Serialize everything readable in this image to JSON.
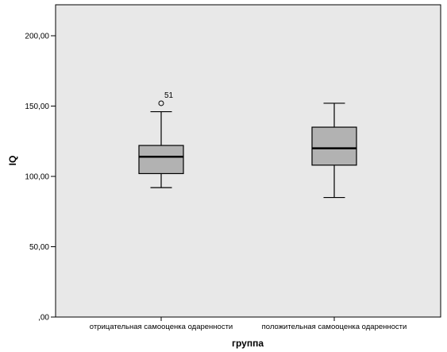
{
  "chart_data": {
    "type": "boxplot",
    "xlabel": "группа",
    "ylabel": "IQ",
    "ylim": [
      0,
      220
    ],
    "yticks": [
      0,
      50,
      100,
      150,
      200
    ],
    "ytick_labels": [
      ",00",
      "50,00",
      "100,00",
      "150,00",
      "200,00"
    ],
    "grid": false,
    "categories": [
      "отрицательная самооценка одаренности",
      "положительная самооценка одаренности"
    ],
    "boxes": [
      {
        "category": "отрицательная самооценка одаренности",
        "whisker_low": 92,
        "q1": 102,
        "median": 114,
        "q3": 122,
        "whisker_high": 146,
        "outliers": [
          {
            "value": 152,
            "label": "51"
          }
        ]
      },
      {
        "category": "положительная самооценка одаренности",
        "whisker_low": 85,
        "q1": 108,
        "median": 120,
        "q3": 135,
        "whisker_high": 152,
        "outliers": []
      }
    ],
    "colors": {
      "plot_bg": "#e8e8e8",
      "box_fill": "#b2b2b2",
      "line": "#000000"
    }
  }
}
